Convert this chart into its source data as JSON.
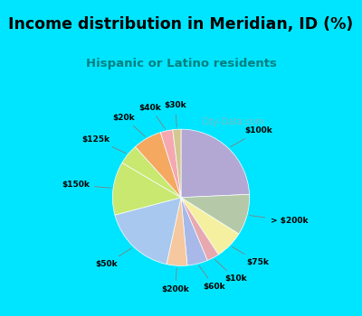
{
  "title": "Income distribution in Meridian, ID (%)",
  "subtitle": "Hispanic or Latino residents",
  "watermark": "City-Data.com",
  "labels": [
    "$100k",
    "> $200k",
    "$75k",
    "$10k",
    "$60k",
    "$200k",
    "$50k",
    "$150k",
    "$125k",
    "$20k",
    "$40k",
    "$30k"
  ],
  "sizes": [
    25,
    10,
    7,
    3,
    5,
    5,
    18,
    13,
    5,
    7,
    3,
    2
  ],
  "colors": [
    "#b3a8d4",
    "#b5c9a8",
    "#f5f0a0",
    "#e8a8b0",
    "#a8b8e8",
    "#f5c8a0",
    "#a8c8f0",
    "#c8e870",
    "#c8e870",
    "#f5a860",
    "#f5a8b0",
    "#d4c890"
  ],
  "bg_color_top": "#00e5ff",
  "bg_color_chart": "#e8f5f0",
  "title_color": "#000000",
  "subtitle_color": "#008080",
  "startangle": 90
}
